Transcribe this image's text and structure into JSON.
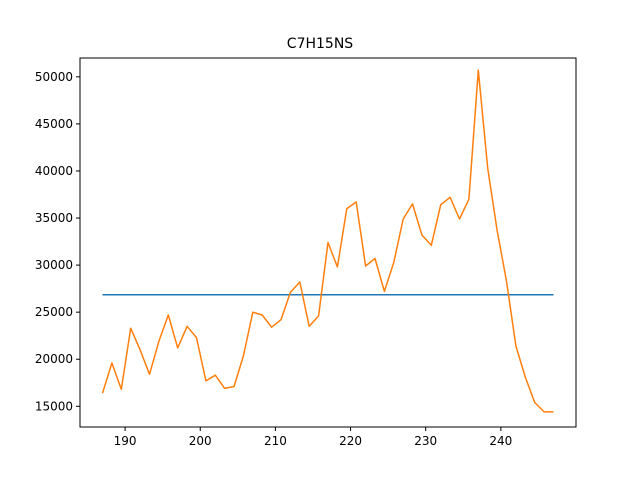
{
  "chart_data": {
    "type": "line",
    "title": "C7H15NS",
    "xlabel": "",
    "ylabel": "",
    "xlim": [
      184,
      250
    ],
    "ylim": [
      12800,
      52000
    ],
    "xticks": [
      190,
      200,
      210,
      220,
      230,
      240
    ],
    "yticks": [
      15000,
      20000,
      25000,
      30000,
      35000,
      40000,
      45000,
      50000
    ],
    "grid": false,
    "legend": "none",
    "series": [
      {
        "color": "#1f77b4",
        "x": [
          187,
          247
        ],
        "y": [
          26850,
          26850
        ]
      },
      {
        "color": "#ff7f0e",
        "x": [
          187,
          188.25,
          189.5,
          190.75,
          192,
          193.25,
          194.5,
          195.75,
          197,
          198.25,
          199.5,
          200.75,
          202,
          203.25,
          204.5,
          205.75,
          207,
          208.25,
          209.5,
          210.75,
          212,
          213.25,
          214.5,
          215.75,
          217,
          218.25,
          219.5,
          220.75,
          222,
          223.25,
          224.5,
          225.75,
          227,
          228.25,
          229.5,
          230.75,
          232,
          233.25,
          234.5,
          235.75,
          237,
          238.25,
          239.5,
          240.75,
          242,
          243.25,
          244.5,
          245.75,
          247
        ],
        "y": [
          16400,
          19600,
          16800,
          23300,
          21000,
          18400,
          21900,
          24700,
          21200,
          23500,
          22300,
          17700,
          18300,
          16900,
          17100,
          20400,
          25000,
          24700,
          23400,
          24200,
          27100,
          28200,
          23500,
          24600,
          32400,
          29800,
          36000,
          36700,
          29900,
          30700,
          27200,
          30300,
          34900,
          36500,
          33200,
          32100,
          36400,
          37200,
          34900,
          37000,
          50700,
          40300,
          33700,
          28300,
          21400,
          18100,
          15400,
          14400,
          14400
        ]
      }
    ]
  }
}
